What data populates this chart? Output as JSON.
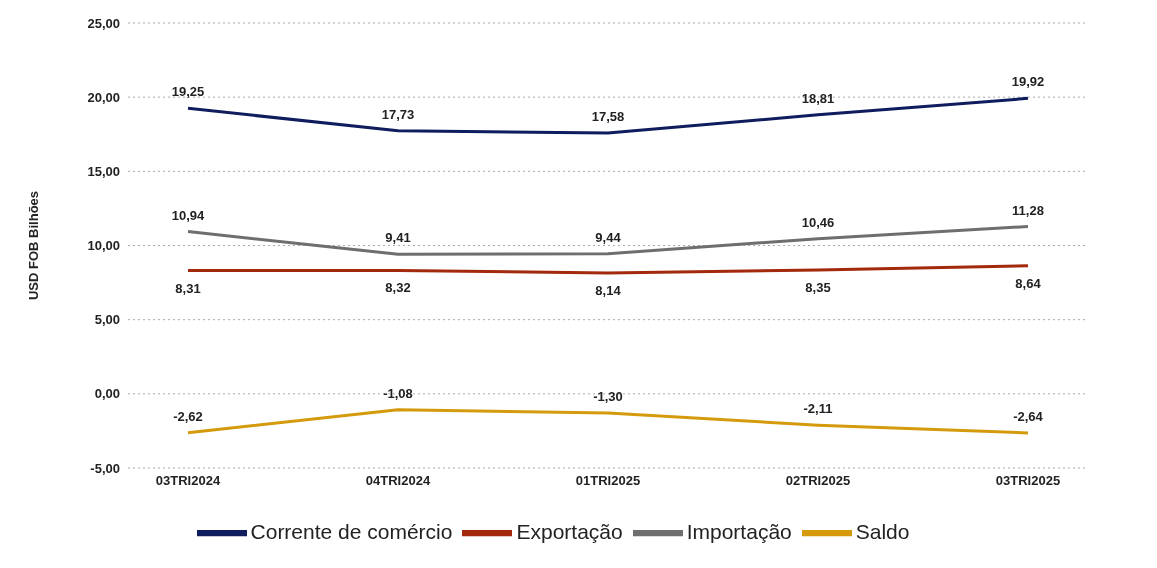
{
  "chart_data": {
    "type": "line",
    "ylabel": "USD FOB Bilhões",
    "categories": [
      "03TRI2024",
      "04TRI2024",
      "01TRI2025",
      "02TRI2025",
      "03TRI2025"
    ],
    "series": [
      {
        "name": "Corrente de comércio",
        "color": "#0f1c5e",
        "values": [
          19.25,
          17.73,
          17.58,
          18.81,
          19.92
        ],
        "value_labels": [
          "19,25",
          "17,73",
          "17,58",
          "18,81",
          "19,92"
        ]
      },
      {
        "name": "Exportação",
        "color": "#a3290c",
        "values": [
          8.31,
          8.32,
          8.14,
          8.35,
          8.64
        ],
        "value_labels": [
          "8,31",
          "8,32",
          "8,14",
          "8,35",
          "8,64"
        ]
      },
      {
        "name": "Importação",
        "color": "#6e6e6e",
        "values": [
          10.94,
          9.41,
          9.44,
          10.46,
          11.28
        ],
        "value_labels": [
          "10,94",
          "9,41",
          "9,44",
          "10,46",
          "11,28"
        ]
      },
      {
        "name": "Saldo",
        "color": "#d49a0c",
        "values": [
          -2.62,
          -1.08,
          -1.3,
          -2.11,
          -2.64
        ],
        "value_labels": [
          "-2,62",
          "-1,08",
          "-1,30",
          "-2,11",
          "-2,64"
        ]
      }
    ],
    "ylim": [
      -5,
      25
    ],
    "yticks": [
      {
        "value": -5,
        "label": "-5,00"
      },
      {
        "value": 0,
        "label": "0,00"
      },
      {
        "value": 5,
        "label": "5,00"
      },
      {
        "value": 10,
        "label": "10,00"
      },
      {
        "value": 15,
        "label": "15,00"
      },
      {
        "value": 20,
        "label": "20,00"
      },
      {
        "value": 25,
        "label": "25,00"
      }
    ],
    "grid": "y",
    "legend": "bottom",
    "marker": "none",
    "line_style": "solid"
  }
}
